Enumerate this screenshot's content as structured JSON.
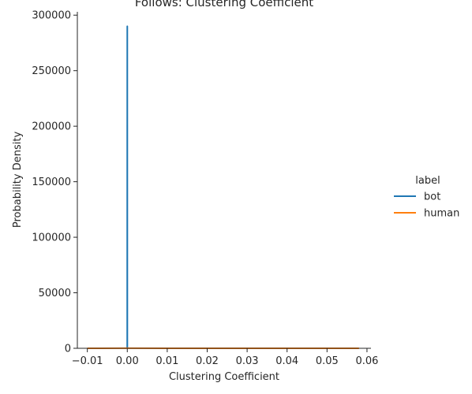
{
  "chart_data": {
    "type": "line",
    "title": "Follows: Clustering Coefficient",
    "xlabel": "Clustering Coefficient",
    "ylabel": "Probability Density",
    "xlim": [
      -0.0125,
      0.061
    ],
    "ylim": [
      0,
      303000
    ],
    "xticks": [
      -0.01,
      0.0,
      0.01,
      0.02,
      0.03,
      0.04,
      0.05,
      0.06
    ],
    "xtick_labels": [
      "−0.01",
      "0.00",
      "0.01",
      "0.02",
      "0.03",
      "0.04",
      "0.05",
      "0.06"
    ],
    "yticks": [
      0,
      50000,
      100000,
      150000,
      200000,
      250000,
      300000
    ],
    "ytick_labels": [
      "0",
      "50000",
      "100000",
      "150000",
      "200000",
      "250000",
      "300000"
    ],
    "grid": false,
    "legend_title": "label",
    "legend_position": "right",
    "series": [
      {
        "name": "bot",
        "color": "#1f77b4",
        "x": [
          -1e-05,
          0.0,
          0.0,
          1e-05
        ],
        "y": [
          0,
          290000,
          290000,
          0
        ]
      },
      {
        "name": "human",
        "color": "#ff7f0e",
        "x": [
          -0.01,
          0.0,
          0.01,
          0.02,
          0.03,
          0.04,
          0.05,
          0.058
        ],
        "y": [
          20,
          60,
          40,
          30,
          25,
          20,
          15,
          10
        ]
      }
    ]
  }
}
